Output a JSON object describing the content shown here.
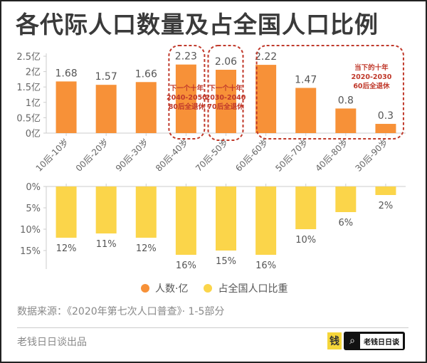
{
  "title": "各代际人口数量及占全国人口比例",
  "chart_data": [
    {
      "type": "bar",
      "title": "人数·亿",
      "categories": [
        "10后-10岁",
        "00后-20岁",
        "90后-30岁",
        "80后-40岁",
        "70后-50岁",
        "60后-60岁",
        "50后-70岁",
        "40后-80岁",
        "30后-90岁"
      ],
      "values": [
        1.68,
        1.57,
        1.66,
        2.23,
        2.06,
        2.22,
        1.47,
        0.8,
        0.3
      ],
      "data_labels": [
        "1.68",
        "1.57",
        "1.66",
        "2.23",
        "2.06",
        "2.22",
        "1.47",
        "0.8",
        "0.3"
      ],
      "ylim": [
        0,
        2.5
      ],
      "yticks": [
        "0亿",
        "0.5亿",
        "1亿",
        "1.5亿",
        "2亿",
        "2.5亿"
      ],
      "color": "#f79138",
      "annotations": [
        {
          "lines": [
            "下一个十年",
            "2040-2050",
            "80后全退休"
          ],
          "covers": [
            "80后-40岁"
          ]
        },
        {
          "lines": [
            "下一个十年",
            "2030-2040",
            "70后全退休"
          ],
          "covers": [
            "70后-50岁"
          ]
        },
        {
          "lines": [
            "当下的十年",
            "2020-2030",
            "60后全退休"
          ],
          "covers": [
            "60后-60岁",
            "50后-70岁",
            "40后-80岁",
            "30后-90岁"
          ]
        }
      ],
      "annotation_color": "#c0392b"
    },
    {
      "type": "bar",
      "title": "占全国人口比重",
      "categories": [
        "10后-10岁",
        "00后-20岁",
        "90后-30岁",
        "80后-40岁",
        "70后-50岁",
        "60后-60岁",
        "50后-70岁",
        "40后-80岁",
        "30后-90岁"
      ],
      "values": [
        12,
        11,
        12,
        16,
        15,
        16,
        10,
        6,
        2
      ],
      "data_labels": [
        "12%",
        "11%",
        "12%",
        "16%",
        "15%",
        "16%",
        "10%",
        "6%",
        "2%"
      ],
      "ylim": [
        0,
        18
      ],
      "yticks": [
        "0%",
        "5%",
        "10%",
        "15%"
      ],
      "inverted": true,
      "color": "#fbd54a"
    }
  ],
  "legend": [
    {
      "label": "人数·亿",
      "color": "#f79138"
    },
    {
      "label": "占全国人口比重",
      "color": "#fbd54a"
    }
  ],
  "source": "数据来源：《2020年第七次人口普查》· 1-5部分",
  "credit": "老钱日日谈出品",
  "brand": {
    "logo_char": "钱",
    "search_icon": "search-icon",
    "name": "老钱日日谈"
  }
}
